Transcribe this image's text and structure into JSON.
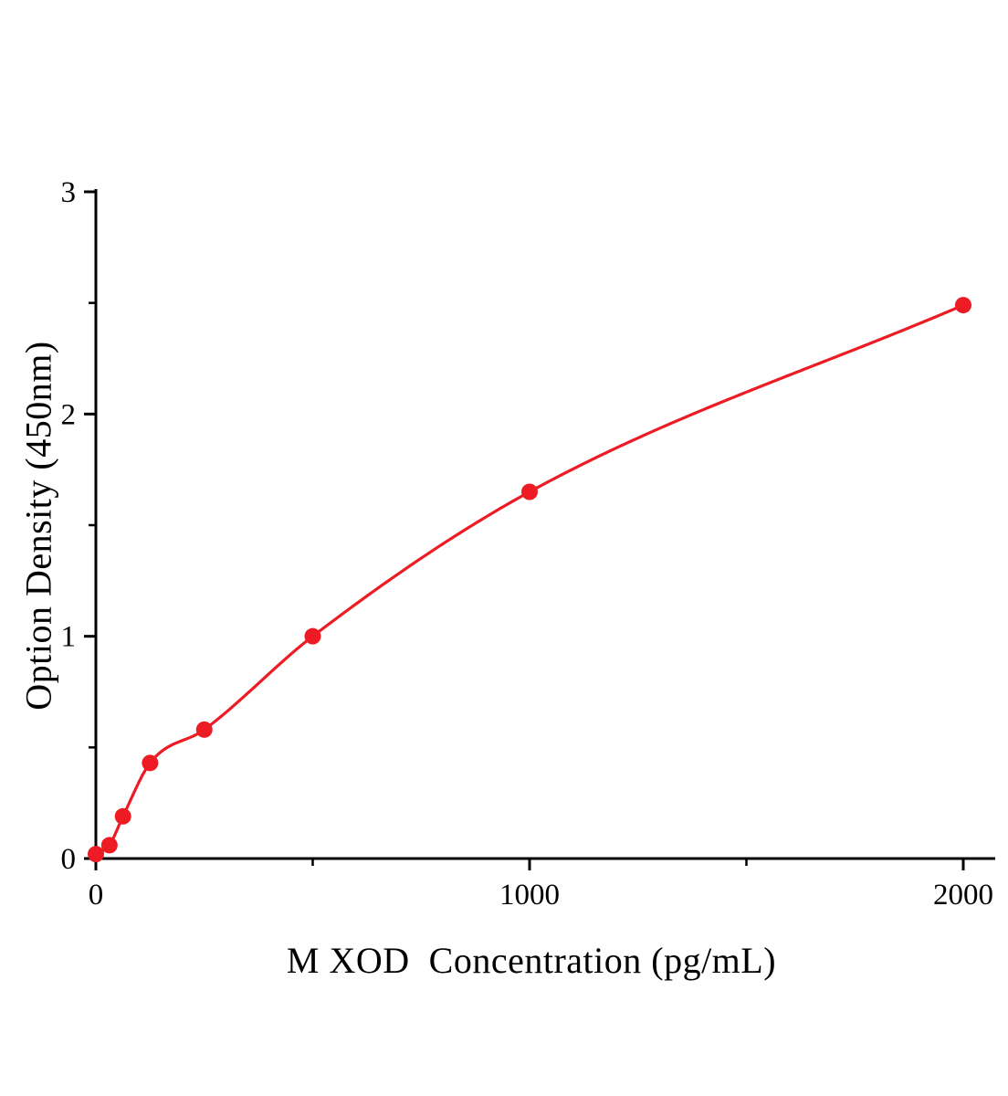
{
  "page": {
    "background": "#ffffff"
  },
  "chart_data": {
    "type": "scatter",
    "title": "",
    "xlabel": "M XOD  Concentration (pg/mL)",
    "ylabel": "Option Density (450nm)",
    "points": [
      {
        "x": 0,
        "y": 0.02
      },
      {
        "x": 31.25,
        "y": 0.06
      },
      {
        "x": 62.5,
        "y": 0.19
      },
      {
        "x": 125,
        "y": 0.43
      },
      {
        "x": 250,
        "y": 0.58
      },
      {
        "x": 500,
        "y": 1.0
      },
      {
        "x": 1000,
        "y": 1.65
      },
      {
        "x": 2000,
        "y": 2.49
      }
    ],
    "curve_style": "smooth-monotone-fit",
    "xlim": [
      0,
      2075
    ],
    "ylim": [
      0,
      3
    ],
    "xticks_major": [
      0,
      1000,
      2000
    ],
    "xticks_minor": [
      500,
      1500
    ],
    "yticks_major": [
      0,
      1,
      2,
      3
    ],
    "yticks_minor": [
      0.5,
      1.5,
      2.5
    ],
    "xtick_labels": [
      "0",
      "1000",
      "2000"
    ],
    "ytick_labels": [
      "0",
      "1",
      "2",
      "3"
    ],
    "line_color": "#ed1c24",
    "marker_color": "#ed1c24",
    "marker_radius": 9,
    "axis_color": "#000000",
    "grid": false,
    "legend": null
  }
}
